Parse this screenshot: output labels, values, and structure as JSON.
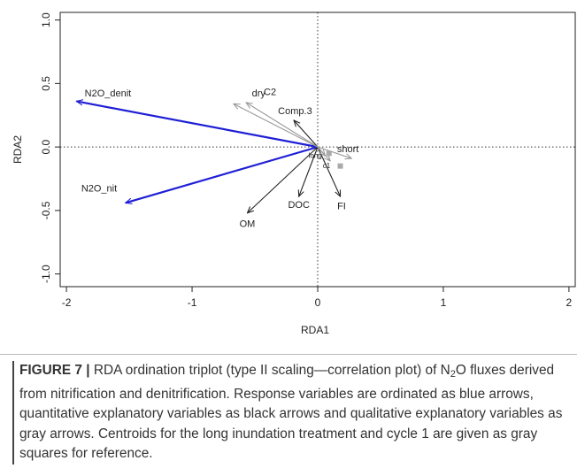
{
  "chart_data": {
    "type": "scatter",
    "subtype": "RDA triplot (biplot arrows)",
    "xlabel": "RDA1",
    "ylabel": "RDA2",
    "xlim": [
      -2.05,
      2.05
    ],
    "ylim": [
      -1.1,
      1.06
    ],
    "xticks": [
      -2,
      -1,
      0,
      1,
      2
    ],
    "yticks": [
      -1.0,
      -0.5,
      0.0,
      0.5,
      1.0
    ],
    "x_tick_labels": [
      "-2",
      "-1",
      "0",
      "1",
      "2"
    ],
    "y_tick_labels": [
      "-1.0",
      "-0.5",
      "0.0",
      "0.5",
      "1.0"
    ],
    "reference_lines": {
      "x": 0,
      "y": 0,
      "style": "dotted"
    },
    "arrows": [
      {
        "label": "N2O_denit",
        "x": -1.92,
        "y": 0.36,
        "group": "response",
        "color": "#1f1fd6",
        "label_x": -1.67,
        "label_y": 0.42
      },
      {
        "label": "N2O_nit",
        "x": -1.53,
        "y": -0.44,
        "group": "response",
        "color": "#1f1fd6",
        "label_x": -1.74,
        "label_y": -0.33
      },
      {
        "label": "OM",
        "x": -0.56,
        "y": -0.52,
        "group": "quantitative",
        "color": "#222222",
        "label_x": -0.56,
        "label_y": -0.61
      },
      {
        "label": "DOC",
        "x": -0.15,
        "y": -0.39,
        "group": "quantitative",
        "color": "#222222",
        "label_x": -0.15,
        "label_y": -0.46
      },
      {
        "label": "FI",
        "x": 0.18,
        "y": -0.39,
        "group": "quantitative",
        "color": "#222222",
        "label_x": 0.19,
        "label_y": -0.47
      },
      {
        "label": "Comp.3",
        "x": -0.19,
        "y": 0.21,
        "group": "quantitative",
        "color": "#222222",
        "label_x": -0.18,
        "label_y": 0.28
      },
      {
        "label": "dry",
        "x": -0.67,
        "y": 0.34,
        "group": "qualitative",
        "color": "#999999",
        "label_x": -0.47,
        "label_y": 0.42
      },
      {
        "label": "C2",
        "x": -0.57,
        "y": 0.35,
        "group": "qualitative",
        "color": "#999999",
        "label_x": -0.38,
        "label_y": 0.43
      },
      {
        "label": "short",
        "x": 0.27,
        "y": -0.09,
        "group": "qualitative",
        "color": "#999999",
        "label_x": 0.24,
        "label_y": -0.02
      },
      {
        "label": "long",
        "x": 0.06,
        "y": -0.07,
        "group": "qualitative",
        "color": "#999999",
        "label_x": -0.02,
        "label_y": -0.07
      },
      {
        "label": "c1",
        "x": 0.1,
        "y": -0.11,
        "group": "qualitative",
        "color": "#999999",
        "label_x": 0.07,
        "label_y": -0.15
      }
    ],
    "centroids": [
      {
        "label": "long",
        "x": 0.09,
        "y": -0.05
      },
      {
        "label": "c1",
        "x": 0.18,
        "y": -0.15
      }
    ]
  },
  "caption": {
    "figure_label": "FIGURE 7 |",
    "text_before_sub": " RDA ordination triplot (type II scaling—correlation plot) of N",
    "subscript": "2",
    "text_after_sub": "O fluxes derived from nitrification and denitrification. Response variables are ordinated as blue arrows, quantitative explanatory variables as black arrows and qualitative explanatory variables as gray arrows. Centroids for the long inundation treatment and cycle 1 are given as gray squares for reference."
  }
}
